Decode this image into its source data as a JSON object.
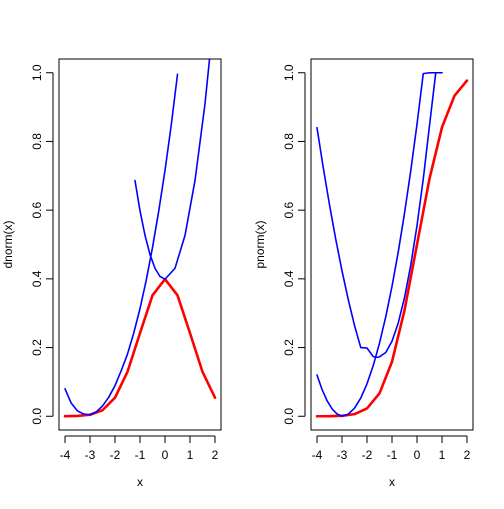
{
  "chart_data": [
    {
      "type": "line",
      "xlabel": "x",
      "ylabel": "dnorm(x)",
      "xlim": [
        -4,
        2
      ],
      "ylim": [
        0,
        1
      ],
      "x_ticks": [
        -4,
        -3,
        -2,
        -1,
        0,
        1,
        2
      ],
      "y_ticks": [
        0.0,
        0.2,
        0.4,
        0.6,
        0.8,
        1.0
      ],
      "x_tick_labels": [
        "-4",
        "-3",
        "-2",
        "-1",
        "0",
        "1",
        "2"
      ],
      "y_tick_labels": [
        "0.0",
        "0.2",
        "0.4",
        "0.6",
        "0.8",
        "1.0"
      ],
      "series": [
        {
          "color": "#ff0000",
          "width": 2.6,
          "x": [
            -4.0,
            -3.5,
            -3.0,
            -2.5,
            -2.0,
            -1.5,
            -1.0,
            -0.5,
            0.0,
            0.5,
            1.0,
            1.5,
            2.0
          ],
          "y": [
            0.0001,
            0.0009,
            0.0044,
            0.0175,
            0.054,
            0.1295,
            0.242,
            0.3521,
            0.3989,
            0.3521,
            0.242,
            0.1295,
            0.054
          ]
        },
        {
          "color": "#0000ff",
          "width": 1.6,
          "x": [
            -4.0,
            -3.75,
            -3.5,
            -3.25,
            -3.0,
            -2.75,
            -2.5,
            -2.25,
            -2.0,
            -1.75,
            -1.5,
            -1.25,
            -1.0,
            -0.75,
            -0.5,
            -0.25,
            0.0,
            0.25,
            0.5
          ],
          "y": [
            0.0798,
            0.0381,
            0.0154,
            0.0063,
            0.0044,
            0.0128,
            0.0296,
            0.0555,
            0.0893,
            0.1329,
            0.1811,
            0.2424,
            0.3133,
            0.3962,
            0.4911,
            0.5977,
            0.7155,
            0.8478,
            0.9954
          ]
        },
        {
          "color": "#0000ff",
          "width": 1.6,
          "x": [
            -1.2,
            -1.0,
            -0.8,
            -0.6,
            -0.4,
            -0.2,
            0.0,
            0.4,
            0.8,
            1.2,
            1.6,
            2.0
          ],
          "y": [
            0.6861,
            0.5984,
            0.5266,
            0.4707,
            0.4308,
            0.4069,
            0.3989,
            0.4308,
            0.5266,
            0.6861,
            0.9095,
            1.1978
          ]
        }
      ]
    },
    {
      "type": "line",
      "xlabel": "x",
      "ylabel": "pnorm(x)",
      "xlim": [
        -4,
        2
      ],
      "ylim": [
        0,
        1
      ],
      "x_ticks": [
        -4,
        -3,
        -2,
        -1,
        0,
        1,
        2
      ],
      "y_ticks": [
        0.0,
        0.2,
        0.4,
        0.6,
        0.8,
        1.0
      ],
      "x_tick_labels": [
        "-4",
        "-3",
        "-2",
        "-1",
        "0",
        "1",
        "2"
      ],
      "y_tick_labels": [
        "0.0",
        "0.2",
        "0.4",
        "0.6",
        "0.8",
        "1.0"
      ],
      "series": [
        {
          "color": "#ff0000",
          "width": 2.6,
          "x": [
            -4.0,
            -3.5,
            -3.0,
            -2.5,
            -2.0,
            -1.5,
            -1.0,
            -0.5,
            0.0,
            0.5,
            1.0,
            1.5,
            2.0
          ],
          "y": [
            0.0,
            0.0002,
            0.0013,
            0.0062,
            0.0228,
            0.0668,
            0.1587,
            0.3085,
            0.5,
            0.6915,
            0.8413,
            0.9332,
            0.9772
          ]
        },
        {
          "color": "#0000ff",
          "width": 1.6,
          "x": [
            -4.0,
            -3.8,
            -3.6,
            -3.4,
            -3.2,
            -3.0,
            -2.75,
            -2.5,
            -2.25,
            -2.0,
            -1.75,
            -1.5,
            -1.25,
            -1.0,
            -0.75,
            -0.5,
            -0.25,
            0.0,
            0.25,
            0.5,
            0.75,
            1.0
          ],
          "y": [
            0.12,
            0.0784,
            0.0457,
            0.0218,
            0.0067,
            0.0005,
            0.0063,
            0.0234,
            0.0531,
            0.0946,
            0.1478,
            0.2128,
            0.2896,
            0.3781,
            0.4784,
            0.5905,
            0.7144,
            0.85,
            0.9974,
            1.0,
            1.0,
            1.0
          ]
        },
        {
          "color": "#0000ff",
          "width": 1.6,
          "x": [
            -4.0,
            -3.75,
            -3.5,
            -3.25,
            -3.0,
            -2.75,
            -2.5,
            -2.25,
            -2.0,
            -1.75,
            -1.6,
            -1.5,
            -1.25,
            -1.0,
            -0.75,
            -0.5,
            -0.25,
            0.0,
            0.25,
            0.5,
            0.75,
            1.0
          ],
          "y": [
            0.84,
            0.7239,
            0.6156,
            0.5154,
            0.4234,
            0.3396,
            0.2645,
            0.2,
            0.1986,
            0.1736,
            0.1715,
            0.1729,
            0.1857,
            0.2183,
            0.2715,
            0.3454,
            0.4398,
            0.5548,
            0.6903,
            0.8462,
            1.0,
            1.0
          ]
        }
      ]
    }
  ]
}
